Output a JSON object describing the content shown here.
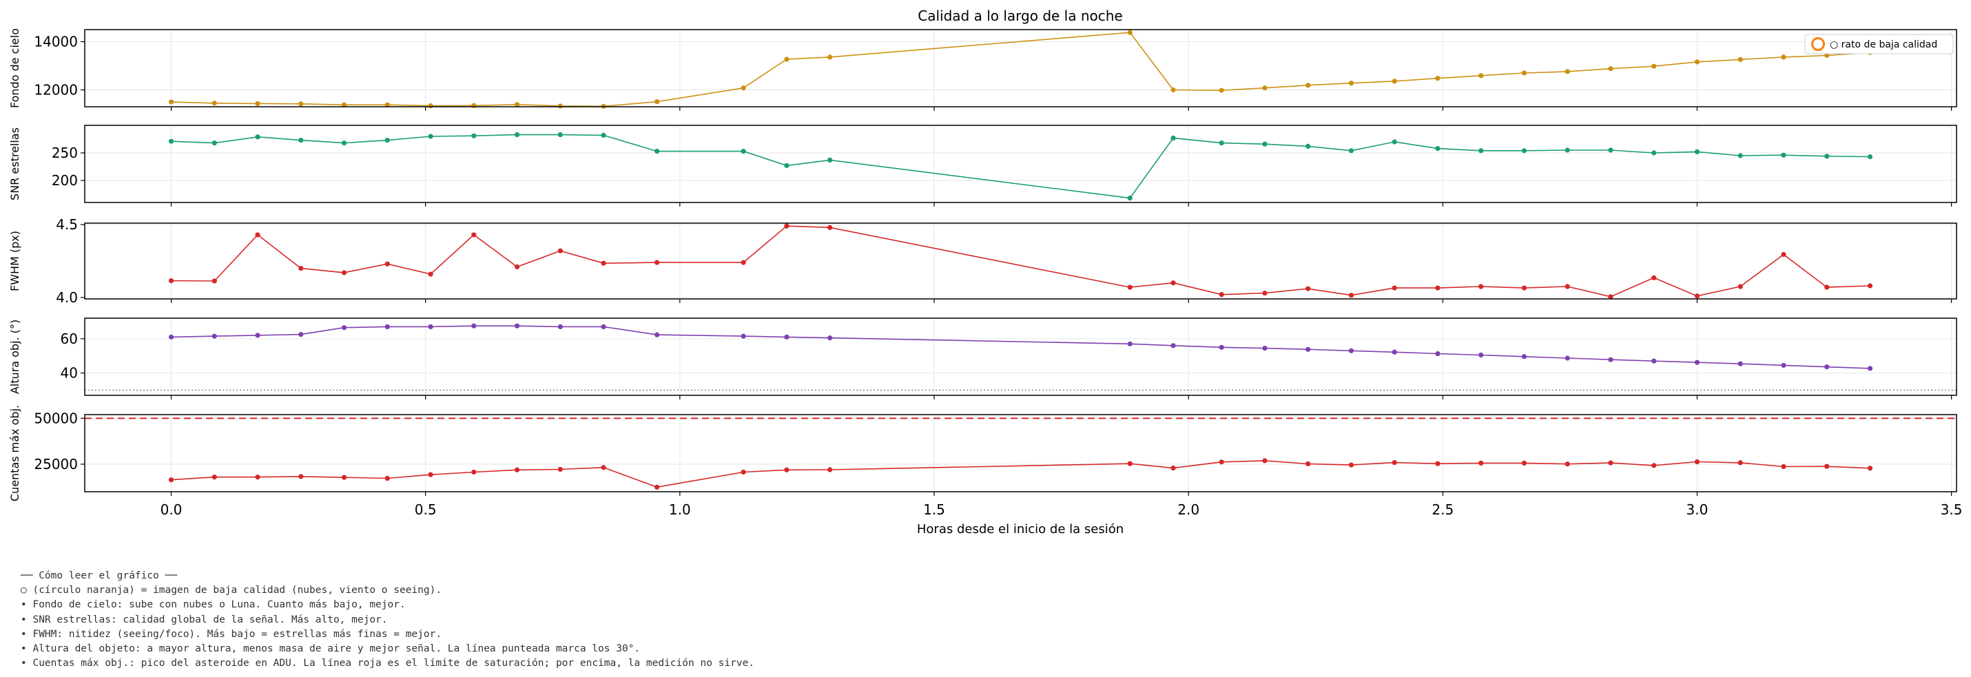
{
  "chart_data": {
    "type": "line",
    "title": "Calidad a lo largo de la noche",
    "xlabel": "Horas desde el inicio de la sesión",
    "xlim": [
      -0.17,
      3.51
    ],
    "xticks": [
      "0.0",
      "0.5",
      "1.0",
      "1.5",
      "2.0",
      "2.5",
      "3.0",
      "3.5"
    ],
    "grid": true,
    "legend": {
      "label": "○ rato de baja calidad",
      "placement": "top-right",
      "marker": "open circle",
      "color": "#ff7f0e"
    },
    "x": [
      0.0,
      0.085,
      0.17,
      0.255,
      0.34,
      0.425,
      0.51,
      0.595,
      0.68,
      0.765,
      0.85,
      0.955,
      1.125,
      1.21,
      1.295,
      1.885,
      1.97,
      2.065,
      2.15,
      2.235,
      2.32,
      2.405,
      2.49,
      2.575,
      2.66,
      2.745,
      2.83,
      2.915,
      3.0,
      3.085,
      3.17,
      3.255,
      3.34
    ],
    "panels": [
      {
        "ylabel": "Fondo de cielo",
        "color": "#cc9010",
        "ylim": [
          11300,
          14500
        ],
        "yticks": [
          12000,
          14000
        ],
        "values": [
          11500,
          11450,
          11430,
          11420,
          11380,
          11380,
          11340,
          11350,
          11390,
          11330,
          11320,
          11510,
          12080,
          13270,
          13360,
          14380,
          12000,
          11980,
          12080,
          12190,
          12280,
          12360,
          12480,
          12590,
          12700,
          12760,
          12880,
          12980,
          13160,
          13260,
          13360,
          13430,
          13550
        ]
      },
      {
        "ylabel": "SNR estrellas",
        "color": "#1a9e74",
        "ylim": [
          160,
          300
        ],
        "yticks": [
          200,
          250
        ],
        "values": [
          271,
          268,
          279,
          273,
          268,
          273,
          280,
          281,
          283,
          283,
          282,
          253,
          253,
          227,
          237,
          168,
          277,
          268,
          266,
          262,
          254,
          270,
          258,
          254,
          254,
          255,
          255,
          250,
          252,
          245,
          246,
          244,
          243
        ]
      },
      {
        "ylabel": "FWHM (px)",
        "color": "#d62728",
        "ylim": [
          3.99,
          4.51
        ],
        "yticks": [
          "4.0",
          "4.5"
        ],
        "values": [
          4.115,
          4.113,
          4.43,
          4.2,
          4.17,
          4.23,
          4.16,
          4.43,
          4.21,
          4.32,
          4.235,
          4.24,
          4.24,
          4.49,
          4.48,
          4.07,
          4.1,
          4.02,
          4.03,
          4.06,
          4.015,
          4.065,
          4.065,
          4.075,
          4.065,
          4.075,
          4.005,
          4.135,
          4.01,
          4.075,
          4.295,
          4.07,
          4.08
        ]
      },
      {
        "ylabel": "Altura obj. (°)",
        "color": "#8040b0",
        "ylim": [
          27,
          72
        ],
        "yticks": [
          40,
          60
        ],
        "reference_line": {
          "value": 30,
          "style": "dotted",
          "color": "#888888"
        },
        "values": [
          61,
          61.5,
          62,
          62.5,
          66.5,
          67,
          67,
          67.5,
          67.5,
          67,
          67,
          62.3,
          61.5,
          61,
          60.5,
          57,
          56,
          55,
          54.5,
          53.8,
          53,
          52.2,
          51.3,
          50.5,
          49.6,
          48.7,
          47.8,
          47,
          46.2,
          45.4,
          44.5,
          43.6,
          42.7
        ]
      },
      {
        "ylabel": "Cuentas máx obj.",
        "color": "#d62728",
        "ylim": [
          10000,
          52000
        ],
        "yticks": [
          25000,
          50000
        ],
        "reference_line": {
          "value": 50000,
          "style": "dashed",
          "color": "#d62728"
        },
        "values": [
          16500,
          18000,
          18000,
          18300,
          17800,
          17300,
          19300,
          20700,
          21900,
          22200,
          23200,
          12500,
          20700,
          21900,
          22000,
          25300,
          22900,
          26200,
          26900,
          25200,
          24600,
          25900,
          25300,
          25600,
          25600,
          25100,
          25700,
          24300,
          26300,
          25800,
          23700,
          23800,
          22800
        ]
      }
    ]
  },
  "notes": [
    "── Cómo leer el gráfico ──",
    "○ (círculo naranja) = imagen de baja calidad (nubes, viento o seeing).",
    "• Fondo de cielo: sube con nubes o Luna. Cuanto más bajo, mejor.",
    "• SNR estrellas: calidad global de la señal. Más alto, mejor.",
    "• FWHM: nitidez (seeing/foco). Más bajo = estrellas más finas = mejor.",
    "• Altura del objeto: a mayor altura, menos masa de aire y mejor señal. La línea punteada marca los 30°.",
    "• Cuentas máx obj.: pico del asteroide en ADU. La línea roja es el límite de saturación; por encima, la medición no sirve."
  ]
}
